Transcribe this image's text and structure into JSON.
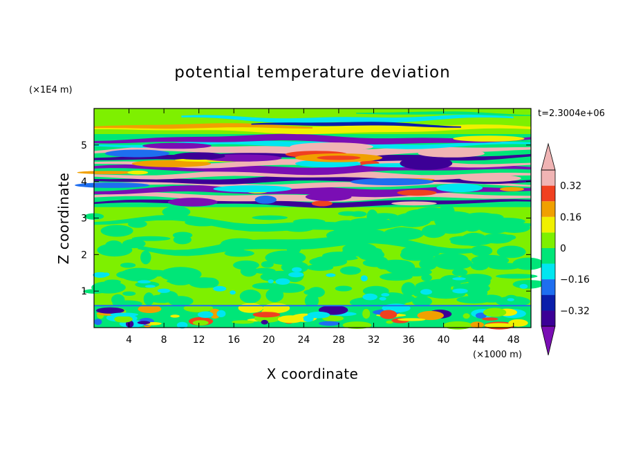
{
  "chart_data": {
    "type": "heatmap",
    "title": "potential temperature deviation",
    "xlabel": "X coordinate",
    "ylabel": "Z coordinate",
    "x_unit": "(×1000 m)",
    "y_unit": "(×1E4 m)",
    "time_label": "t=2.3004e+06",
    "xlim": [
      0,
      50
    ],
    "ylim": [
      0,
      6
    ],
    "x_ticks": [
      4,
      8,
      12,
      16,
      20,
      24,
      28,
      32,
      36,
      40,
      44,
      48
    ],
    "y_ticks": [
      1,
      2,
      3,
      4,
      5
    ],
    "colorbar": {
      "levels": [
        -0.4,
        -0.32,
        -0.24,
        -0.16,
        -0.08,
        0,
        0.08,
        0.16,
        0.24,
        0.32,
        0.4
      ],
      "labels": [
        "0.32",
        "0.16",
        "0",
        "−0.16",
        "−0.32"
      ],
      "label_values": [
        0.32,
        0.16,
        0,
        -0.16,
        -0.32
      ],
      "colors": [
        "#7a0eb4",
        "#3c0096",
        "#0a1eaa",
        "#1e6ef0",
        "#00e6f0",
        "#00e678",
        "#7ef000",
        "#f0f000",
        "#f0a000",
        "#f04020",
        "#f0b4b4"
      ]
    },
    "bands": [
      {
        "z": [
          0.0,
          0.6
        ],
        "pattern": "surface-mixed"
      },
      {
        "z": [
          0.6,
          3.3
        ],
        "pattern": "green-noise"
      },
      {
        "z": [
          3.3,
          5.3
        ],
        "pattern": "layered-pink-purple"
      },
      {
        "z": [
          5.3,
          6.0
        ],
        "pattern": "green-orange-top"
      }
    ]
  }
}
